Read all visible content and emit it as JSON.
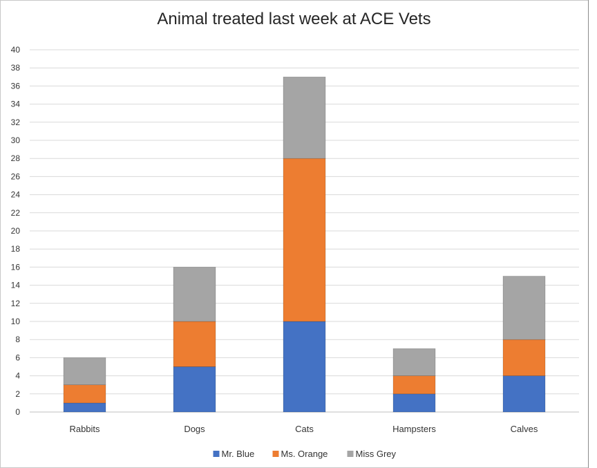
{
  "chart_data": {
    "type": "bar",
    "stacked": true,
    "title": "Animal treated last week at ACE Vets",
    "xlabel": "",
    "ylabel": "",
    "ylim": [
      0,
      40
    ],
    "ytick_step": 2,
    "yticks": [
      "0",
      "2",
      "4",
      "6",
      "8",
      "10",
      "12",
      "14",
      "16",
      "18",
      "20",
      "22",
      "24",
      "26",
      "28",
      "30",
      "32",
      "34",
      "36",
      "38",
      "40"
    ],
    "grid": true,
    "legend_position": "bottom",
    "categories": [
      "Rabbits",
      "Dogs",
      "Cats",
      "Hampsters",
      "Calves"
    ],
    "series": [
      {
        "name": "Mr. Blue",
        "color": "#4472C4",
        "values": [
          1,
          5,
          10,
          2,
          4
        ]
      },
      {
        "name": "Ms. Orange",
        "color": "#ED7D31",
        "values": [
          2,
          5,
          18,
          2,
          4
        ]
      },
      {
        "name": "Miss Grey",
        "color": "#A5A5A5",
        "values": [
          3,
          6,
          9,
          3,
          7
        ]
      }
    ]
  }
}
